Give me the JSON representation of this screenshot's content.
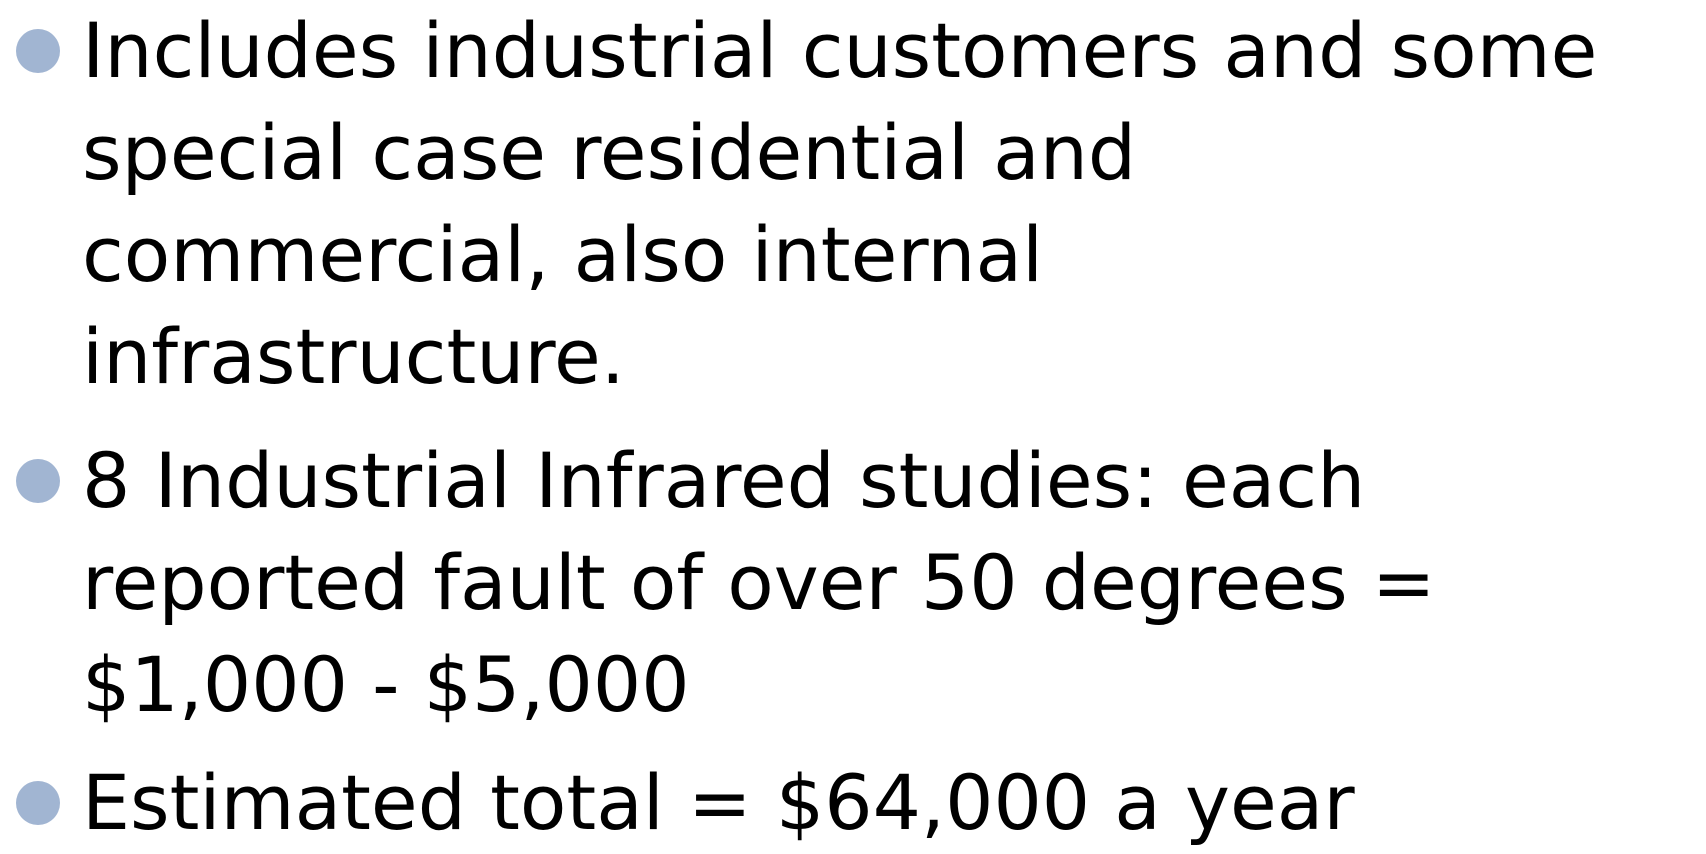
{
  "items": [
    {
      "lines": [
        "Includes industrial customers and some",
        "special case residential and",
        "commercial, also internal",
        "infrastructure."
      ]
    },
    {
      "lines": [
        "8 Industrial Infrared studies: each",
        "reported fault of over 50 degrees =",
        "$1,000 - $5,000"
      ]
    },
    {
      "lines": [
        "Estimated total = $64,000 a year"
      ]
    }
  ]
}
